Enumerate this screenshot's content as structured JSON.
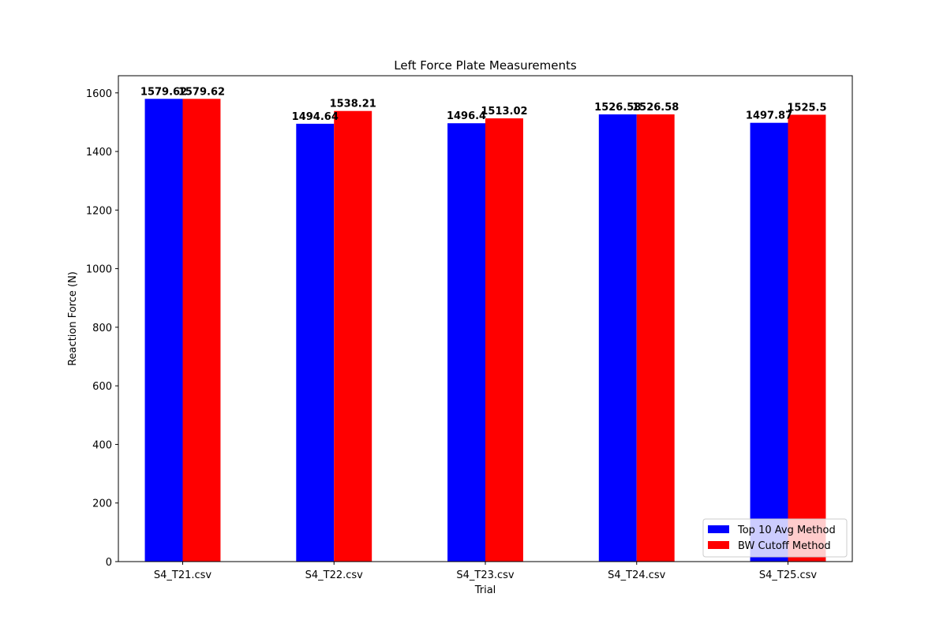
{
  "chart_data": {
    "type": "bar",
    "title": "Left Force Plate Measurements",
    "xlabel": "Trial",
    "ylabel": "Reaction Force (N)",
    "categories": [
      "S4_T21.csv",
      "S4_T22.csv",
      "S4_T23.csv",
      "S4_T24.csv",
      "S4_T25.csv"
    ],
    "series": [
      {
        "name": "Top 10 Avg Method",
        "color": "#0000ff",
        "values": [
          1579.62,
          1494.64,
          1496.4,
          1526.58,
          1497.87
        ],
        "labels": [
          "1579.62",
          "1494.64",
          "1496.4",
          "1526.58",
          "1497.87"
        ]
      },
      {
        "name": "BW Cutoff Method",
        "color": "#ff0000",
        "values": [
          1579.62,
          1538.21,
          1513.02,
          1526.58,
          1525.5
        ],
        "labels": [
          "1579.62",
          "1538.21",
          "1513.02",
          "1526.58",
          "1525.5"
        ]
      }
    ],
    "ylim": [
      0,
      1658.6
    ],
    "yticks": [
      0,
      200,
      400,
      600,
      800,
      1000,
      1200,
      1400,
      1600
    ],
    "ytick_labels": [
      "0",
      "200",
      "400",
      "600",
      "800",
      "1000",
      "1200",
      "1400",
      "1600"
    ],
    "grid": false,
    "legend_position": "lower-right"
  }
}
